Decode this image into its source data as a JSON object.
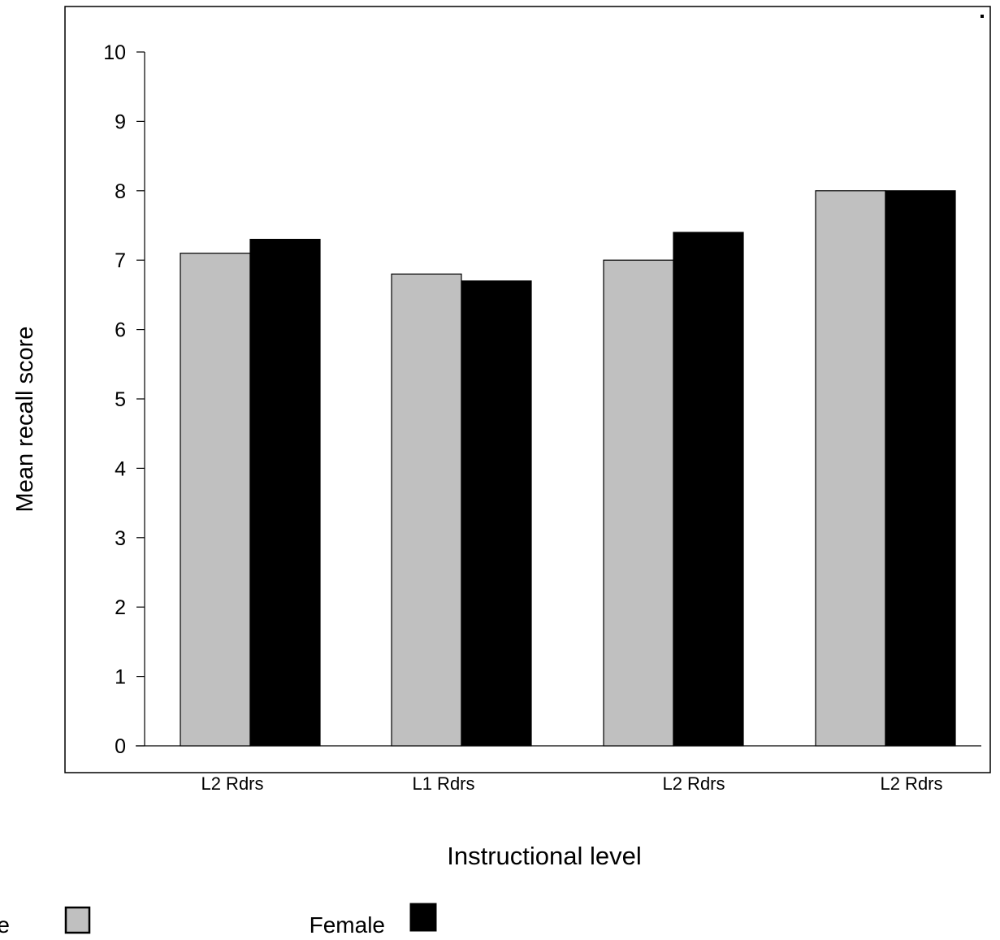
{
  "chart_data": {
    "type": "bar",
    "title": "",
    "xlabel": "Instructional level",
    "ylabel": "Mean recall score",
    "categories": [
      "L2 Rdrs",
      "L1 Rdrs",
      "L2 Rdrs",
      "L2 Rdrs"
    ],
    "series": [
      {
        "name": "Male",
        "values": [
          7.1,
          6.8,
          7.0,
          8.0
        ],
        "color": "#c0c0c0"
      },
      {
        "name": "Female",
        "values": [
          7.3,
          6.7,
          7.4,
          8.0
        ],
        "color": "#000000"
      }
    ],
    "ylim": [
      0,
      10
    ],
    "yticks": [
      "0",
      "1",
      "2",
      "3",
      "4",
      "5",
      "6",
      "7",
      "8",
      "9",
      "10"
    ],
    "grid": false,
    "legend_position": "bottom"
  }
}
